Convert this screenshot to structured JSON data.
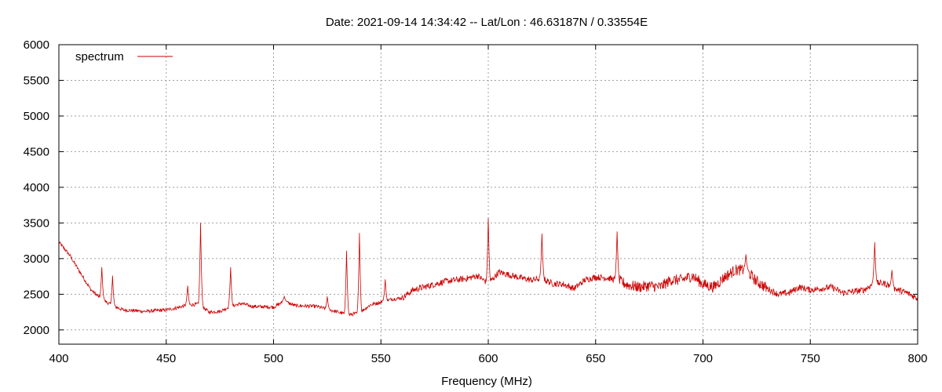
{
  "chart_data": {
    "type": "line",
    "title": "Date: 2021-09-14 14:34:42  --  Lat/Lon : 46.63187N / 0.33554E",
    "xlabel": "Frequency (MHz)",
    "ylabel": "",
    "xlim": [
      400,
      800
    ],
    "ylim": [
      1800,
      6000
    ],
    "x_ticks": [
      400,
      450,
      500,
      550,
      600,
      650,
      700,
      750,
      800
    ],
    "y_ticks": [
      2000,
      2500,
      3000,
      3500,
      4000,
      4500,
      5000,
      5500,
      6000
    ],
    "grid": true,
    "legend_position": "top-left",
    "series": [
      {
        "name": "spectrum",
        "color": "#cc0000",
        "baseline": [
          [
            400,
            3230
          ],
          [
            405,
            3050
          ],
          [
            410,
            2800
          ],
          [
            415,
            2560
          ],
          [
            420,
            2430
          ],
          [
            425,
            2340
          ],
          [
            430,
            2280
          ],
          [
            440,
            2260
          ],
          [
            450,
            2280
          ],
          [
            455,
            2310
          ],
          [
            460,
            2350
          ],
          [
            465,
            2360
          ],
          [
            470,
            2250
          ],
          [
            475,
            2260
          ],
          [
            480,
            2330
          ],
          [
            485,
            2370
          ],
          [
            490,
            2330
          ],
          [
            500,
            2320
          ],
          [
            505,
            2400
          ],
          [
            510,
            2340
          ],
          [
            520,
            2330
          ],
          [
            530,
            2250
          ],
          [
            535,
            2210
          ],
          [
            540,
            2240
          ],
          [
            545,
            2350
          ],
          [
            550,
            2390
          ],
          [
            555,
            2430
          ],
          [
            560,
            2450
          ],
          [
            565,
            2560
          ],
          [
            570,
            2600
          ],
          [
            575,
            2640
          ],
          [
            580,
            2680
          ],
          [
            585,
            2700
          ],
          [
            590,
            2720
          ],
          [
            595,
            2760
          ],
          [
            600,
            2650
          ],
          [
            605,
            2810
          ],
          [
            610,
            2770
          ],
          [
            615,
            2730
          ],
          [
            620,
            2700
          ],
          [
            625,
            2720
          ],
          [
            630,
            2650
          ],
          [
            635,
            2640
          ],
          [
            640,
            2580
          ],
          [
            645,
            2700
          ],
          [
            650,
            2740
          ],
          [
            655,
            2730
          ],
          [
            660,
            2700
          ],
          [
            665,
            2630
          ],
          [
            670,
            2600
          ],
          [
            675,
            2620
          ],
          [
            680,
            2600
          ],
          [
            685,
            2700
          ],
          [
            690,
            2700
          ],
          [
            695,
            2760
          ],
          [
            700,
            2640
          ],
          [
            705,
            2600
          ],
          [
            710,
            2740
          ],
          [
            715,
            2840
          ],
          [
            720,
            2840
          ],
          [
            725,
            2680
          ],
          [
            730,
            2580
          ],
          [
            735,
            2500
          ],
          [
            740,
            2520
          ],
          [
            745,
            2600
          ],
          [
            750,
            2560
          ],
          [
            755,
            2580
          ],
          [
            760,
            2600
          ],
          [
            765,
            2520
          ],
          [
            770,
            2540
          ],
          [
            775,
            2560
          ],
          [
            780,
            2660
          ],
          [
            785,
            2650
          ],
          [
            790,
            2570
          ],
          [
            795,
            2520
          ],
          [
            800,
            2440
          ]
        ],
        "peaks": [
          [
            420,
            2880
          ],
          [
            425,
            2760
          ],
          [
            460,
            2620
          ],
          [
            466,
            3500
          ],
          [
            480,
            2880
          ],
          [
            505,
            2470
          ],
          [
            525,
            2470
          ],
          [
            534,
            3110
          ],
          [
            540,
            3360
          ],
          [
            552,
            2710
          ],
          [
            600,
            3570
          ],
          [
            625,
            3350
          ],
          [
            660,
            3380
          ],
          [
            720,
            3060
          ],
          [
            780,
            3230
          ],
          [
            788,
            2840
          ]
        ]
      }
    ]
  }
}
